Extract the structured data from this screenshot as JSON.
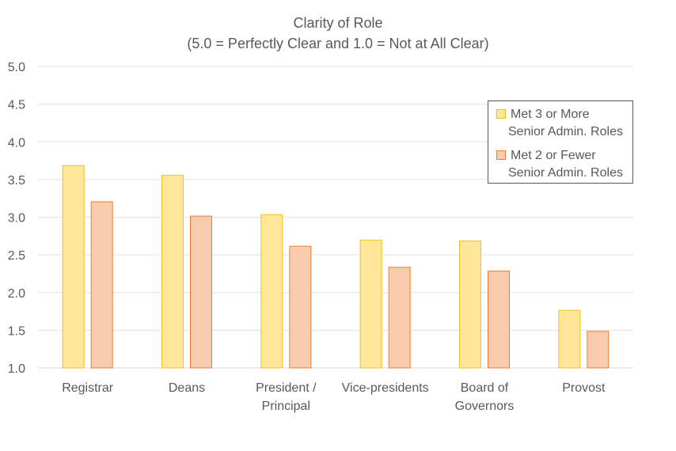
{
  "chart_data": {
    "type": "bar",
    "title": "Clarity of Role",
    "subtitle": "(5.0 = Perfectly Clear and 1.0 = Not at All Clear)",
    "xlabel": "",
    "ylabel": "",
    "ylim": [
      1.0,
      5.0
    ],
    "y_ticks": [
      "1.0",
      "1.5",
      "2.0",
      "2.5",
      "3.0",
      "3.5",
      "4.0",
      "4.5",
      "5.0"
    ],
    "grid": true,
    "legend_position": "top-right",
    "categories": [
      [
        "Registrar"
      ],
      [
        "Deans"
      ],
      [
        "President /",
        "Principal"
      ],
      [
        "Vice-presidents"
      ],
      [
        "Board of",
        "Governors"
      ],
      [
        "Provost"
      ]
    ],
    "series": [
      {
        "name": "Met 3 or More Senior Admin. Roles",
        "legend_lines": [
          "Met 3 or More",
          "Senior Admin. Roles"
        ],
        "fill": "#FFE699",
        "stroke": "#F2C21B",
        "values": [
          3.69,
          3.56,
          3.04,
          2.7,
          2.69,
          1.77
        ]
      },
      {
        "name": "Met 2 or Fewer Senior Admin. Roles",
        "legend_lines": [
          "Met 2 or Fewer",
          "Senior Admin. Roles"
        ],
        "fill": "#F8CBAD",
        "stroke": "#ED7D31",
        "values": [
          3.21,
          3.02,
          2.62,
          2.34,
          2.29,
          1.49
        ]
      }
    ]
  }
}
